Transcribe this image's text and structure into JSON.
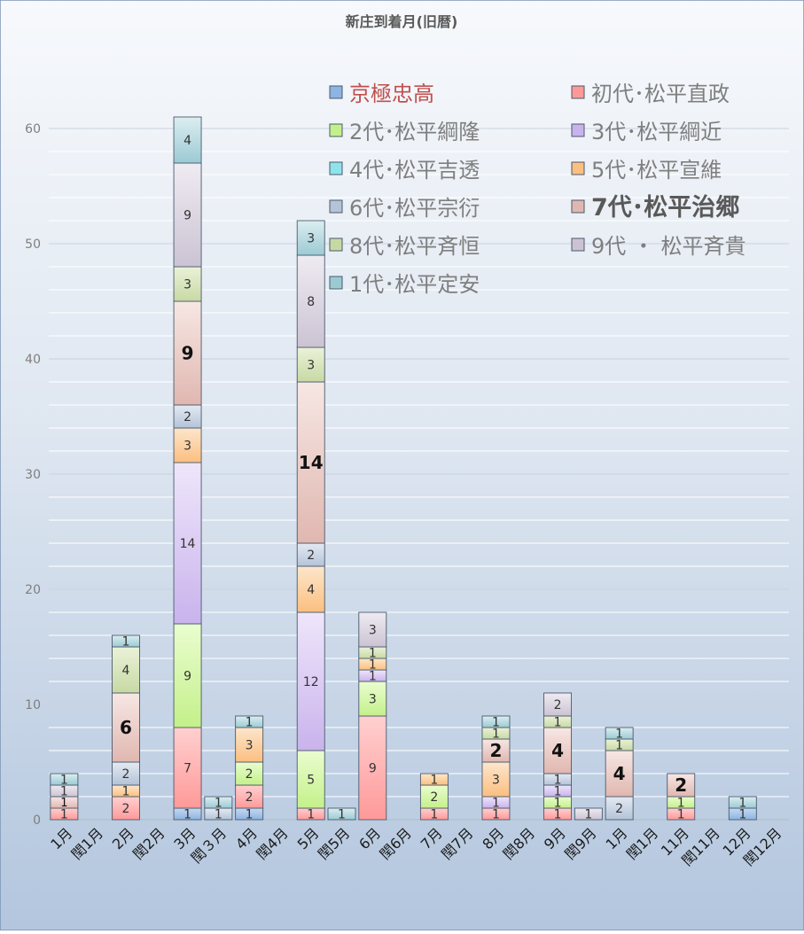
{
  "chart_data": {
    "type": "bar",
    "stacked": true,
    "title": "新庄到着月(旧暦)",
    "xlabel": "",
    "ylabel": "",
    "ylim": [
      0,
      60
    ],
    "yticks": [
      0,
      10,
      20,
      30,
      40,
      50,
      60
    ],
    "grid": true,
    "legend_position": "top-right",
    "categories": [
      "1月",
      "閏1月",
      "2月",
      "閏2月",
      "3月",
      "閏３月",
      "4月",
      "閏4月",
      "5月",
      "閏5月",
      "6月",
      "閏6月",
      "7月",
      "閏7月",
      "8月",
      "閏8月",
      "9月",
      "閏9月",
      "1月",
      "閏1月",
      "11月",
      "閏11月",
      "12月",
      "閏12月"
    ],
    "series": [
      {
        "name": "京極忠高",
        "color": "#8db4e2",
        "top": "#c6d9f1",
        "text_color": "#c0504d",
        "emphasis": false,
        "values": [
          0,
          0,
          0,
          0,
          1,
          0,
          1,
          0,
          0,
          0,
          0,
          0,
          0,
          0,
          0,
          0,
          0,
          0,
          0,
          0,
          0,
          0,
          1,
          0
        ]
      },
      {
        "name": "初代･松平直政",
        "color": "#ff9999",
        "top": "#ffd0d0",
        "text_color": "#7f7f7f",
        "emphasis": false,
        "values": [
          1,
          0,
          2,
          0,
          7,
          0,
          2,
          0,
          1,
          0,
          9,
          0,
          1,
          0,
          1,
          0,
          1,
          0,
          0,
          0,
          1,
          0,
          0,
          0
        ]
      },
      {
        "name": "2代･松平綱隆",
        "color": "#c4f08a",
        "top": "#eafdd0",
        "text_color": "#7f7f7f",
        "emphasis": false,
        "values": [
          0,
          0,
          0,
          0,
          9,
          0,
          2,
          0,
          5,
          0,
          3,
          0,
          2,
          0,
          0,
          0,
          1,
          0,
          0,
          0,
          1,
          0,
          0,
          0
        ]
      },
      {
        "name": "3代･松平綱近",
        "color": "#c9b3ec",
        "top": "#efe6fb",
        "text_color": "#7f7f7f",
        "emphasis": false,
        "values": [
          0,
          0,
          0,
          0,
          14,
          0,
          0,
          0,
          12,
          0,
          1,
          0,
          0,
          0,
          1,
          0,
          1,
          0,
          0,
          0,
          0,
          0,
          0,
          0
        ]
      },
      {
        "name": "4代･松平吉透",
        "color": "#8fe3ea",
        "top": "#d6f6f8",
        "text_color": "#7f7f7f",
        "emphasis": false,
        "values": [
          0,
          0,
          0,
          0,
          0,
          0,
          0,
          0,
          0,
          0,
          0,
          0,
          0,
          0,
          0,
          0,
          0,
          0,
          0,
          0,
          0,
          0,
          0,
          0
        ]
      },
      {
        "name": "5代･松平宣維",
        "color": "#fbbf7f",
        "top": "#fde6cc",
        "text_color": "#7f7f7f",
        "emphasis": false,
        "values": [
          0,
          0,
          1,
          0,
          3,
          0,
          3,
          0,
          4,
          0,
          1,
          0,
          1,
          0,
          3,
          0,
          0,
          0,
          0,
          0,
          0,
          0,
          0,
          0
        ]
      },
      {
        "name": "6代･松平宗衍",
        "color": "#b4c3d8",
        "top": "#e4eaf3",
        "text_color": "#7f7f7f",
        "emphasis": false,
        "values": [
          0,
          0,
          2,
          0,
          2,
          1,
          0,
          0,
          2,
          0,
          0,
          0,
          0,
          0,
          0,
          0,
          1,
          0,
          2,
          0,
          0,
          0,
          0,
          0
        ]
      },
      {
        "name": "7代･松平治郷",
        "color": "#e0b7b0",
        "top": "#f7e7e4",
        "text_color": "#7f7f7f",
        "emphasis": true,
        "values": [
          1,
          0,
          6,
          0,
          9,
          0,
          0,
          0,
          14,
          0,
          0,
          0,
          0,
          0,
          2,
          0,
          4,
          0,
          4,
          0,
          2,
          0,
          0,
          0
        ]
      },
      {
        "name": "8代･松平斉恒",
        "color": "#c7d9a3",
        "top": "#ebf2d9",
        "text_color": "#7f7f7f",
        "emphasis": false,
        "values": [
          0,
          0,
          4,
          0,
          3,
          0,
          0,
          0,
          3,
          0,
          1,
          0,
          0,
          0,
          1,
          0,
          1,
          0,
          1,
          0,
          0,
          0,
          0,
          0
        ]
      },
      {
        "name": "9代 ・ 松平斉貴",
        "color": "#cbc3d3",
        "top": "#efebf2",
        "text_color": "#7f7f7f",
        "emphasis": false,
        "values": [
          1,
          0,
          0,
          0,
          9,
          0,
          0,
          0,
          8,
          0,
          3,
          0,
          0,
          0,
          0,
          0,
          2,
          1,
          0,
          0,
          0,
          0,
          0,
          0
        ]
      },
      {
        "name": "1代･松平定安",
        "color": "#9ccad3",
        "top": "#dbeef1",
        "text_color": "#7f7f7f",
        "emphasis": false,
        "values": [
          1,
          0,
          1,
          0,
          4,
          1,
          1,
          0,
          3,
          1,
          0,
          0,
          0,
          0,
          1,
          0,
          0,
          0,
          1,
          0,
          0,
          0,
          1,
          0
        ]
      }
    ]
  }
}
